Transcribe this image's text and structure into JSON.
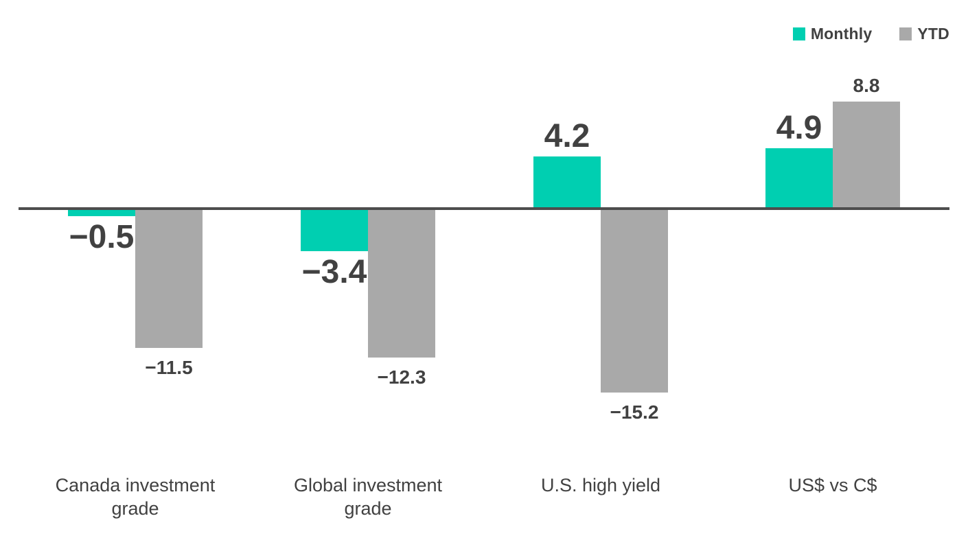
{
  "colors": {
    "monthly": "#00CFB1",
    "ytd": "#A9A9A9",
    "axis": "#4D4D4D",
    "text": "#414141",
    "background": "#FFFFFF"
  },
  "legend": {
    "items": [
      {
        "label": "Monthly",
        "color": "#00CFB1"
      },
      {
        "label": "YTD",
        "color": "#A9A9A9"
      }
    ]
  },
  "chart_data": {
    "type": "bar",
    "title": "",
    "xlabel": "",
    "ylabel": "",
    "categories": [
      "Canada investment grade",
      "Global investment grade",
      "U.S. high yield",
      "US$ vs C$"
    ],
    "series": [
      {
        "name": "Monthly",
        "color": "#00CFB1",
        "values": [
          -0.5,
          -3.4,
          4.2,
          4.9
        ],
        "value_labels": [
          "−0.5",
          "−3.4",
          "4.2",
          "4.9"
        ]
      },
      {
        "name": "YTD",
        "color": "#A9A9A9",
        "values": [
          -11.5,
          -12.3,
          -15.2,
          8.8
        ],
        "value_labels": [
          "−11.5",
          "−12.3",
          "−15.2",
          "8.8"
        ]
      }
    ],
    "ylim": [
      -16,
      10
    ],
    "baseline": 0,
    "grid": false,
    "axis_ticks_visible": false,
    "legend_position": "top-right",
    "value_labels_shown": true
  }
}
